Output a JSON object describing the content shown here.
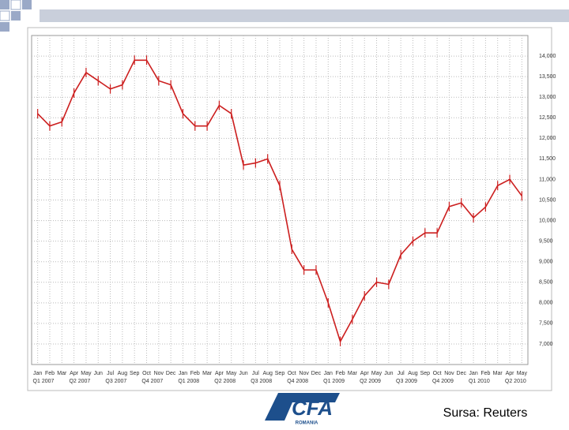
{
  "chart_data": {
    "type": "line",
    "color": "#cc1f1f",
    "grid": true,
    "axis_side": "right",
    "categories": [
      "Jan",
      "Feb",
      "Mar",
      "Apr",
      "May",
      "Jun",
      "Jul",
      "Aug",
      "Sep",
      "Oct",
      "Nov",
      "Dec",
      "Jan",
      "Feb",
      "Mar",
      "Apr",
      "May",
      "Jun",
      "Jul",
      "Aug",
      "Sep",
      "Oct",
      "Nov",
      "Dec",
      "Jan",
      "Feb",
      "Mar",
      "Apr",
      "May",
      "Jun",
      "Jul",
      "Aug",
      "Sep",
      "Oct",
      "Nov",
      "Dec",
      "Jan",
      "Feb",
      "Mar",
      "Apr",
      "May"
    ],
    "quarters": [
      "Q1 2007",
      "Q2 2007",
      "Q3 2007",
      "Q4 2007",
      "Q1 2008",
      "Q2 2008",
      "Q3 2008",
      "Q4 2008",
      "Q1 2009",
      "Q2 2009",
      "Q3 2009",
      "Q4 2009",
      "Q1 2010",
      "Q2 2010"
    ],
    "values": [
      12600,
      12300,
      12400,
      13100,
      13600,
      13400,
      13200,
      13300,
      13900,
      13900,
      13400,
      13300,
      12600,
      12300,
      12300,
      12800,
      12600,
      11350,
      11400,
      11500,
      10850,
      9300,
      8800,
      8800,
      8000,
      7060,
      7600,
      8170,
      8500,
      8450,
      9170,
      9500,
      9700,
      9700,
      10340,
      10430,
      10070,
      10330,
      10850,
      11000,
      10600
    ],
    "ylim": [
      6500,
      14500
    ],
    "yticks": [
      {
        "value": 7000,
        "label": "7,000"
      },
      {
        "value": 7500,
        "label": "7,500"
      },
      {
        "value": 8000,
        "label": "8,000"
      },
      {
        "value": 8500,
        "label": "8,500"
      },
      {
        "value": 9000,
        "label": "9,000"
      },
      {
        "value": 9500,
        "label": "9,500"
      },
      {
        "value": 10000,
        "label": "10,000"
      },
      {
        "value": 10500,
        "label": "10,500"
      },
      {
        "value": 11000,
        "label": "11,000"
      },
      {
        "value": 11500,
        "label": "11,500"
      },
      {
        "value": 12000,
        "label": "12,000"
      },
      {
        "value": 12500,
        "label": "12,500"
      },
      {
        "value": 13000,
        "label": "13,000"
      },
      {
        "value": 13500,
        "label": "13,500"
      },
      {
        "value": 14000,
        "label": "14,000"
      }
    ]
  },
  "footer": {
    "logo": "CFA",
    "logo_sub": "ROMANIA",
    "source": "Sursa: Reuters"
  }
}
